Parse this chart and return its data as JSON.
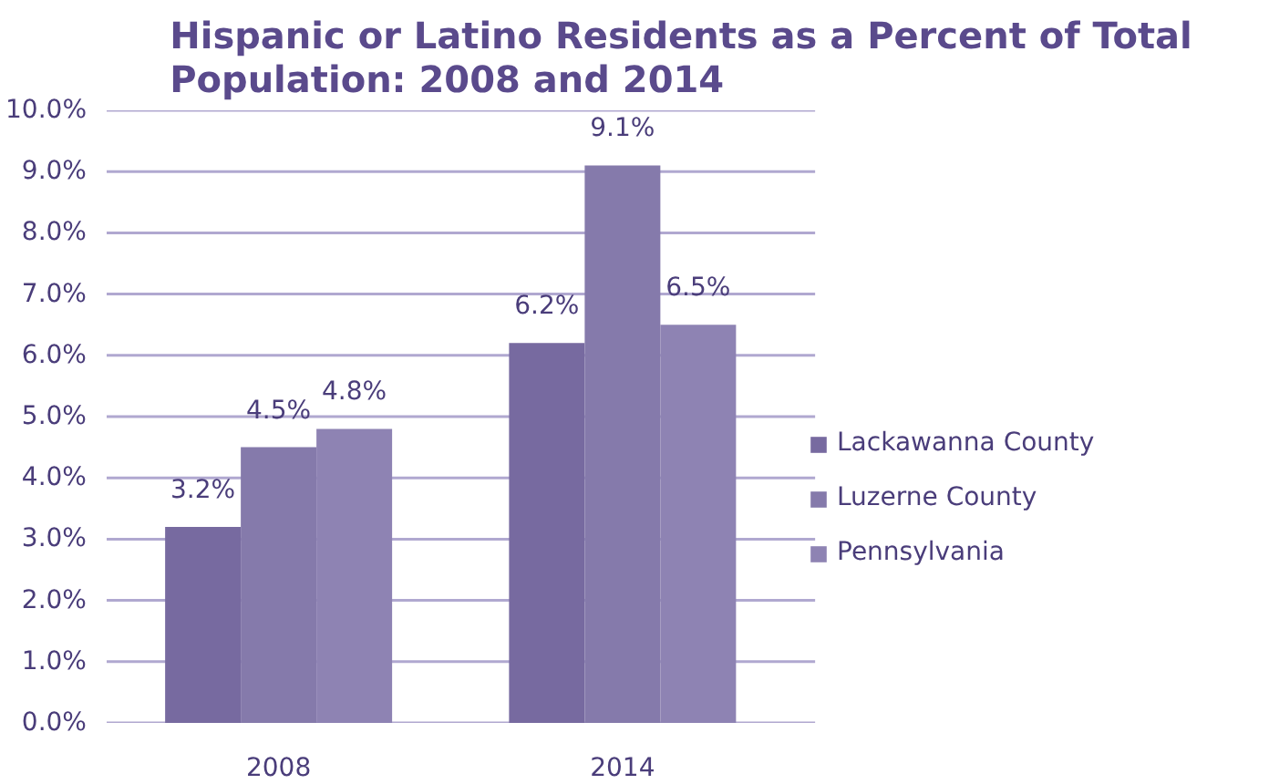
{
  "chart_data": {
    "type": "bar",
    "title": "Hispanic or Latino Residents as a Percent of Total\nPopulation: 2008 and 2014",
    "categories": [
      "2008",
      "2014"
    ],
    "series": [
      {
        "name": "Lackawanna County",
        "color": "#776aa0",
        "values": [
          3.2,
          6.2
        ]
      },
      {
        "name": "Luzerne County",
        "color": "#857aab",
        "values": [
          4.5,
          9.1
        ]
      },
      {
        "name": "Pennsylvania",
        "color": "#8e83b3",
        "values": [
          4.8,
          6.5
        ]
      }
    ],
    "value_labels": [
      [
        "3.2%",
        "6.2%"
      ],
      [
        "4.5%",
        "9.1%"
      ],
      [
        "4.8%",
        "6.5%"
      ]
    ],
    "ylim": [
      0,
      10
    ],
    "yticks": [
      {
        "value": 0,
        "label": "0.0%"
      },
      {
        "value": 1,
        "label": "1.0%"
      },
      {
        "value": 2,
        "label": "2.0%"
      },
      {
        "value": 3,
        "label": "3.0%"
      },
      {
        "value": 4,
        "label": "4.0%"
      },
      {
        "value": 5,
        "label": "5.0%"
      },
      {
        "value": 6,
        "label": "6.0%"
      },
      {
        "value": 7,
        "label": "7.0%"
      },
      {
        "value": 8,
        "label": "8.0%"
      },
      {
        "value": 9,
        "label": "9.0%"
      },
      {
        "value": 10,
        "label": "10.0%"
      }
    ],
    "grid": "y",
    "legend": "right"
  }
}
